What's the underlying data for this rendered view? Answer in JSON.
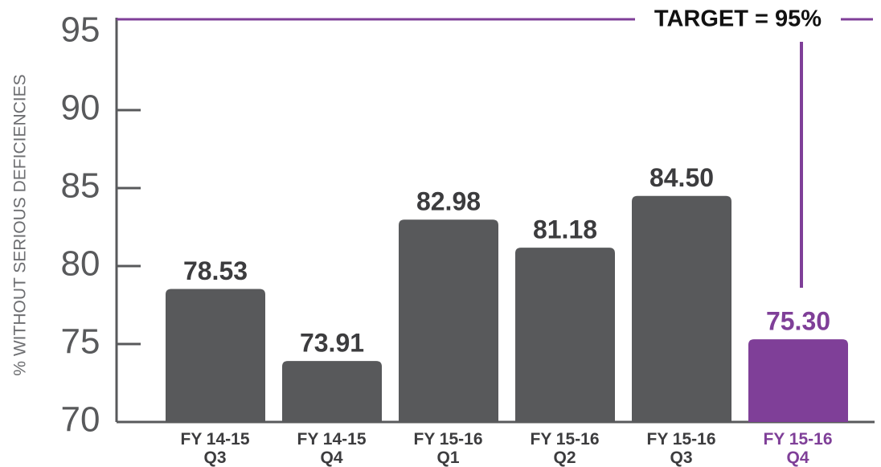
{
  "chart_data": {
    "type": "bar",
    "y_label": "% WITHOUT SERIOUS DEFICIENCIES",
    "categories": [
      "FY 14-15 Q3",
      "FY 14-15 Q4",
      "FY 15-16 Q1",
      "FY 15-16 Q2",
      "FY 15-16 Q3",
      "FY 15-16 Q4"
    ],
    "values": [
      78.53,
      73.91,
      82.98,
      81.18,
      84.5,
      75.3
    ],
    "value_labels": [
      "78.53",
      "73.91",
      "82.98",
      "81.18",
      "84.50",
      "75.30"
    ],
    "colors": [
      "#58595b",
      "#58595b",
      "#58595b",
      "#58595b",
      "#58595b",
      "#7f3f98"
    ],
    "ylim": [
      70,
      95
    ],
    "yticks": [
      70,
      75,
      80,
      85,
      90,
      95
    ],
    "target": 95,
    "target_label": "TARGET = 95%",
    "target_color": "#7f3f98"
  }
}
